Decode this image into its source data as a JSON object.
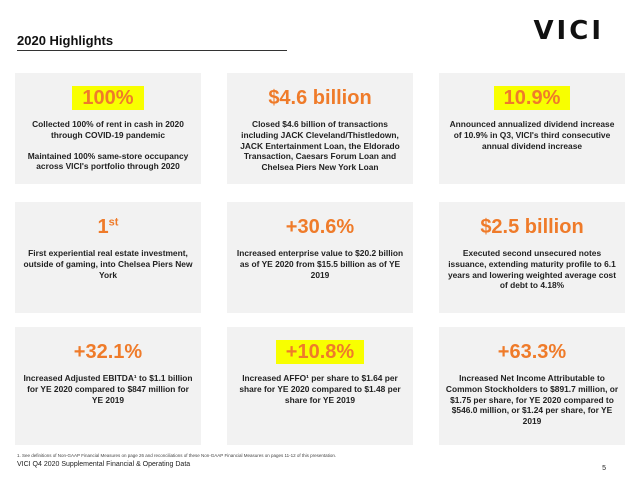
{
  "header": {
    "title": "2020 Highlights",
    "logo": "VICI"
  },
  "colors": {
    "accent_orange": "#ef7b2a",
    "highlight_yellow": "#f8ff00",
    "card_bg": "#f2f2f2"
  },
  "cards": [
    {
      "big": "100%",
      "highlighted": true,
      "lines": [
        "Collected 100% of rent in cash in 2020 through COVID-19 pandemic",
        "Maintained 100% same-store occupancy across VICI's portfolio through 2020"
      ]
    },
    {
      "big": "$4.6 billion",
      "highlighted": false,
      "lines": [
        "Closed $4.6 billion of transactions including JACK Cleveland/Thistledown, JACK Entertainment Loan, the Eldorado Transaction, Caesars Forum Loan and Chelsea Piers New York Loan"
      ]
    },
    {
      "big": "10.9%",
      "highlighted": true,
      "lines": [
        "Announced annualized dividend increase of 10.9% in Q3, VICI's third consecutive annual dividend increase"
      ]
    },
    {
      "big": "1",
      "big_sup": "st",
      "highlighted": false,
      "lines": [
        "First experiential real estate investment, outside of gaming, into Chelsea Piers New York"
      ]
    },
    {
      "big": "+30.6%",
      "highlighted": false,
      "lines": [
        "Increased enterprise value to $20.2 billion as of YE 2020 from $15.5 billion as of YE 2019"
      ]
    },
    {
      "big": "$2.5 billion",
      "highlighted": false,
      "lines": [
        "Executed second unsecured notes issuance, extending maturity profile to 6.1 years and lowering weighted average cost of debt to 4.18%"
      ]
    },
    {
      "big": "+32.1%",
      "highlighted": false,
      "lines": [
        "Increased Adjusted EBITDA¹ to $1.1 billion for YE 2020 compared to $847 million for YE 2019"
      ]
    },
    {
      "big": "+10.8%",
      "highlighted": true,
      "lines": [
        "Increased AFFO¹ per share to $1.64 per share for YE 2020 compared to $1.48 per share for YE 2019"
      ]
    },
    {
      "big": "+63.3%",
      "highlighted": false,
      "lines": [
        "Increased Net Income Attributable to Common Stockholders to $891.7 million, or $1.75 per share, for YE 2020 compared to $546.0 million, or $1.24 per share, for YE 2019"
      ]
    }
  ],
  "footer": {
    "footnote": "1. See definitions of Non-GAAP Financial Measures on page 26 and reconciliations of these Non-GAAP Financial Measures on pages 11-12 of this presentation.",
    "source": "VICI Q4 2020 Supplemental Financial & Operating Data",
    "page_number": "5"
  }
}
